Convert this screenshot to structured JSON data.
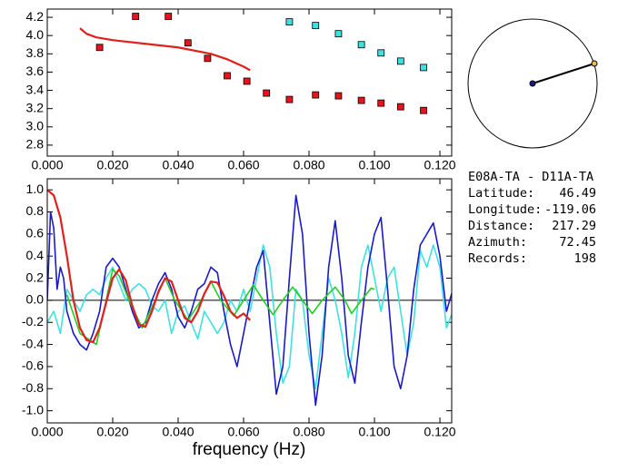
{
  "chart_data": [
    {
      "type": "scatter",
      "xlim": [
        0,
        0.1236
      ],
      "ylim": [
        2.68,
        4.29
      ],
      "xticks": [
        {
          "value": 0,
          "label": "0.000"
        },
        {
          "value": 0.02,
          "label": "0.020"
        },
        {
          "value": 0.04,
          "label": "0.040"
        },
        {
          "value": 0.06,
          "label": "0.060"
        },
        {
          "value": 0.08,
          "label": "0.080"
        },
        {
          "value": 0.1,
          "label": "0.100"
        },
        {
          "value": 0.12,
          "label": "0.120"
        }
      ],
      "yticks": [
        {
          "value": 2.8,
          "label": "2.8"
        },
        {
          "value": 3.0,
          "label": "3.0"
        },
        {
          "value": 3.2,
          "label": "3.2"
        },
        {
          "value": 3.4,
          "label": "3.4"
        },
        {
          "value": 3.6,
          "label": "3.6"
        },
        {
          "value": 3.8,
          "label": "3.8"
        },
        {
          "value": 4.0,
          "label": "4.0"
        },
        {
          "value": 4.2,
          "label": "4.2"
        }
      ],
      "series": [
        {
          "color": "#e8141c",
          "marker": "square",
          "x": [
            0.016,
            0.027,
            0.037,
            0.043,
            0.049,
            0.055,
            0.061,
            0.067,
            0.074,
            0.082,
            0.089,
            0.096,
            0.102,
            0.108,
            0.115
          ],
          "values": [
            3.87,
            4.21,
            4.21,
            3.92,
            3.75,
            3.56,
            3.5,
            3.37,
            3.3,
            3.35,
            3.34,
            3.29,
            3.26,
            3.22,
            3.18
          ]
        },
        {
          "color": "#40e0e0",
          "marker": "square",
          "x": [
            0.074,
            0.082,
            0.089,
            0.096,
            0.102,
            0.108,
            0.115
          ],
          "values": [
            4.15,
            4.11,
            4.02,
            3.9,
            3.81,
            3.72,
            3.65
          ]
        },
        {
          "color": "#e0201c",
          "x": [
            0.01,
            0.012,
            0.015,
            0.02,
            0.03,
            0.04,
            0.05,
            0.055,
            0.06,
            0.062
          ],
          "values": [
            4.08,
            4.02,
            3.98,
            3.95,
            3.91,
            3.87,
            3.8,
            3.74,
            3.66,
            3.62
          ]
        }
      ]
    },
    {
      "type": "line",
      "x_label": "frequency (Hz)",
      "xlim": [
        0,
        0.1236
      ],
      "ylim": [
        -1.11,
        1.1
      ],
      "xticks": [
        {
          "value": 0,
          "label": "0.000"
        },
        {
          "value": 0.02,
          "label": "0.020"
        },
        {
          "value": 0.04,
          "label": "0.040"
        },
        {
          "value": 0.06,
          "label": "0.060"
        },
        {
          "value": 0.08,
          "label": "0.080"
        },
        {
          "value": 0.1,
          "label": "0.100"
        },
        {
          "value": 0.12,
          "label": "0.120"
        }
      ],
      "yticks": [
        {
          "value": -1.0,
          "label": "-1.0"
        },
        {
          "value": -0.8,
          "label": "-0.8"
        },
        {
          "value": -0.6,
          "label": "-0.6"
        },
        {
          "value": -0.4,
          "label": "-0.4"
        },
        {
          "value": -0.2,
          "label": "-0.2"
        },
        {
          "value": 0,
          "label": "0.0"
        },
        {
          "value": 0.2,
          "label": "0.2"
        },
        {
          "value": 0.4,
          "label": "0.4"
        },
        {
          "value": 0.6,
          "label": "0.6"
        },
        {
          "value": 0.8,
          "label": "0.8"
        },
        {
          "value": 1.0,
          "label": "1.0"
        }
      ],
      "series": [
        {
          "color": "#40e0e0",
          "x": [
            0,
            0.002,
            0.004,
            0.006,
            0.008,
            0.01,
            0.012,
            0.014,
            0.016,
            0.018,
            0.02,
            0.022,
            0.024,
            0.026,
            0.028,
            0.03,
            0.032,
            0.034,
            0.036,
            0.038,
            0.04,
            0.042,
            0.044,
            0.046,
            0.048,
            0.05,
            0.052,
            0.054,
            0.056,
            0.058,
            0.06,
            0.062,
            0.064,
            0.066,
            0.068,
            0.07,
            0.072,
            0.074,
            0.076,
            0.078,
            0.08,
            0.082,
            0.084,
            0.086,
            0.088,
            0.09,
            0.092,
            0.094,
            0.096,
            0.098,
            0.1,
            0.102,
            0.104,
            0.106,
            0.108,
            0.11,
            0.112,
            0.114,
            0.116,
            0.118,
            0.12,
            0.122,
            0.124
          ],
          "values": [
            -0.2,
            -0.1,
            -0.3,
            0.1,
            0.0,
            -0.1,
            0.05,
            0.1,
            0.05,
            0.2,
            0.3,
            0.15,
            0.0,
            0.1,
            0.15,
            0.1,
            -0.05,
            -0.1,
            0.0,
            -0.3,
            -0.1,
            -0.05,
            -0.2,
            -0.35,
            -0.1,
            -0.2,
            -0.3,
            -0.2,
            0.0,
            -0.1,
            0.1,
            -0.1,
            0.2,
            0.5,
            0.3,
            -0.3,
            -0.75,
            -0.6,
            0.1,
            0.0,
            -0.5,
            -0.8,
            -0.3,
            0.2,
            0.0,
            -0.3,
            -0.7,
            -0.3,
            0.3,
            0.5,
            0.2,
            -0.1,
            0.2,
            0.3,
            -0.1,
            -0.5,
            -0.2,
            0.45,
            0.3,
            0.5,
            0.3,
            -0.25,
            -0.1
          ]
        },
        {
          "color": "#1a1ac8",
          "x": [
            0,
            0.001,
            0.002,
            0.003,
            0.004,
            0.005,
            0.006,
            0.008,
            0.01,
            0.012,
            0.014,
            0.016,
            0.018,
            0.02,
            0.022,
            0.024,
            0.026,
            0.028,
            0.03,
            0.032,
            0.034,
            0.036,
            0.038,
            0.04,
            0.042,
            0.044,
            0.046,
            0.048,
            0.05,
            0.052,
            0.054,
            0.056,
            0.058,
            0.06,
            0.062,
            0.064,
            0.066,
            0.068,
            0.07,
            0.072,
            0.074,
            0.076,
            0.078,
            0.08,
            0.082,
            0.084,
            0.086,
            0.088,
            0.09,
            0.092,
            0.094,
            0.096,
            0.098,
            0.1,
            0.102,
            0.104,
            0.106,
            0.108,
            0.11,
            0.112,
            0.114,
            0.116,
            0.118,
            0.12,
            0.122,
            0.124
          ],
          "values": [
            0.0,
            0.8,
            0.65,
            0.1,
            0.3,
            0.2,
            -0.1,
            -0.3,
            -0.4,
            -0.45,
            -0.3,
            -0.1,
            0.3,
            0.38,
            0.3,
            0.1,
            -0.1,
            -0.25,
            -0.2,
            0.0,
            0.15,
            0.25,
            0.1,
            -0.15,
            -0.25,
            -0.1,
            0.1,
            0.15,
            0.3,
            0.25,
            -0.1,
            -0.4,
            -0.6,
            -0.3,
            0.0,
            0.3,
            0.45,
            -0.2,
            -0.85,
            -0.6,
            0.2,
            0.95,
            0.6,
            -0.3,
            -0.95,
            -0.5,
            0.3,
            0.72,
            0.2,
            -0.5,
            -0.75,
            -0.2,
            0.3,
            0.6,
            0.75,
            0.1,
            -0.6,
            -0.8,
            -0.5,
            0.1,
            0.5,
            0.6,
            0.7,
            0.4,
            -0.1,
            0.1
          ]
        },
        {
          "color": "#20d020",
          "x": [
            0.006,
            0.01,
            0.015,
            0.018,
            0.02,
            0.022,
            0.025,
            0.029,
            0.033,
            0.036,
            0.039,
            0.043,
            0.047,
            0.05,
            0.053,
            0.057,
            0.06,
            0.063,
            0.066,
            0.069,
            0.072,
            0.075,
            0.078,
            0.081,
            0.084,
            0.088,
            0.091,
            0.093,
            0.096,
            0.099,
            0.1
          ],
          "values": [
            0.05,
            -0.3,
            -0.4,
            0.0,
            0.28,
            0.22,
            0.0,
            -0.25,
            0.0,
            0.2,
            0.0,
            -0.18,
            0.0,
            0.17,
            0.0,
            -0.14,
            0.0,
            0.14,
            0.0,
            -0.13,
            0.0,
            0.12,
            0.0,
            -0.12,
            0.0,
            0.12,
            0.0,
            -0.12,
            0.0,
            0.11,
            0.1
          ]
        },
        {
          "color": "#e0201c",
          "x": [
            0,
            0.002,
            0.004,
            0.006,
            0.008,
            0.01,
            0.012,
            0.014,
            0.016,
            0.018,
            0.02,
            0.022,
            0.024,
            0.026,
            0.028,
            0.03,
            0.032,
            0.034,
            0.036,
            0.038,
            0.04,
            0.042,
            0.044,
            0.046,
            0.048,
            0.05,
            0.052,
            0.054,
            0.056,
            0.058,
            0.06,
            0.062
          ],
          "values": [
            1.0,
            0.95,
            0.75,
            0.4,
            0.0,
            -0.25,
            -0.36,
            -0.38,
            -0.25,
            -0.02,
            0.2,
            0.28,
            0.18,
            -0.05,
            -0.22,
            -0.24,
            -0.1,
            0.08,
            0.2,
            0.17,
            0.0,
            -0.16,
            -0.2,
            -0.1,
            0.06,
            0.17,
            0.16,
            0.04,
            -0.1,
            -0.16,
            -0.12,
            -0.18
          ]
        }
      ]
    }
  ],
  "info": {
    "title": "E08A-TA - D11A-TA",
    "rows": [
      {
        "label": "Latitude:",
        "value": "46.49"
      },
      {
        "label": "Longitude:",
        "value": "-119.06"
      },
      {
        "label": "Distance:",
        "value": "217.29"
      },
      {
        "label": "Azimuth:",
        "value": "72.45"
      },
      {
        "label": "Records:",
        "value": "198"
      }
    ]
  }
}
